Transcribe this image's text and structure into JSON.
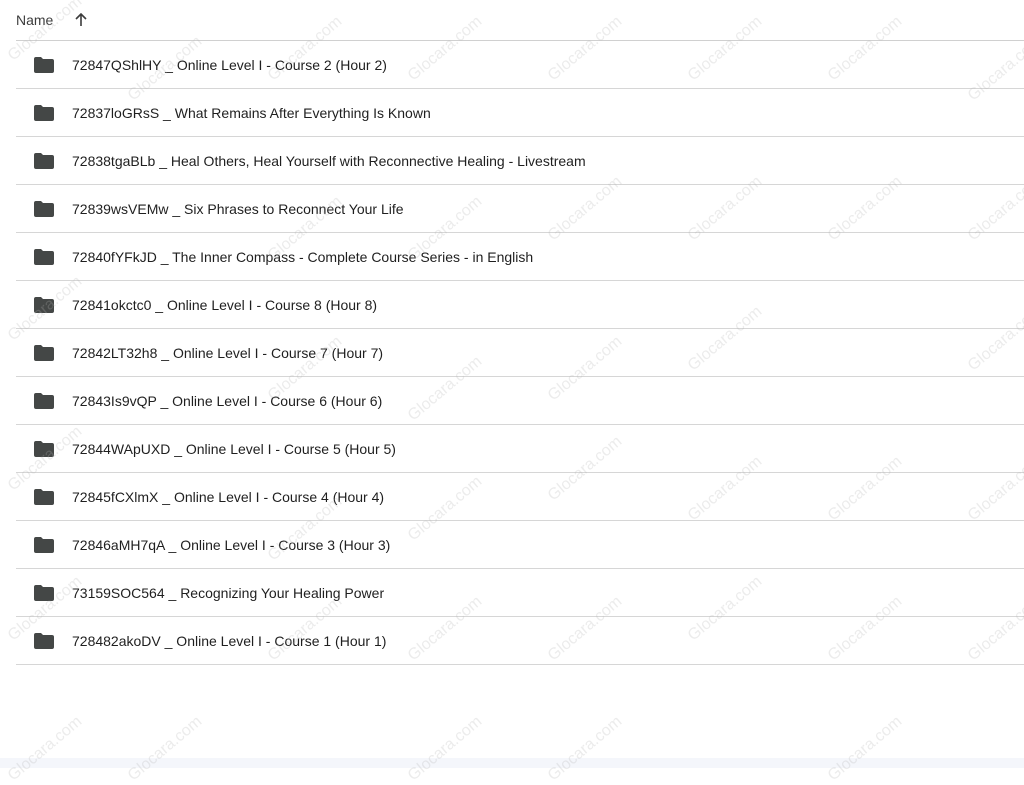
{
  "header": {
    "name_label": "Name",
    "sort_icon": "arrow-up-icon"
  },
  "folder_icon": "folder-icon",
  "items": [
    {
      "name": "72847QShlHY _ Online Level I - Course 2 (Hour 2)"
    },
    {
      "name": "72837loGRsS _ What Remains After Everything Is Known"
    },
    {
      "name": "72838tgaBLb _ Heal Others, Heal Yourself with Reconnective Healing - Livestream"
    },
    {
      "name": "72839wsVEMw _ Six Phrases to Reconnect Your Life"
    },
    {
      "name": "72840fYFkJD _ The Inner Compass - Complete Course Series - in English"
    },
    {
      "name": "72841okctc0 _ Online Level I - Course 8 (Hour 8)"
    },
    {
      "name": "72842LT32h8 _ Online Level I - Course 7 (Hour 7)"
    },
    {
      "name": "72843Is9vQP _ Online Level I - Course 6 (Hour 6)"
    },
    {
      "name": "72844WApUXD _ Online Level I - Course 5 (Hour 5)"
    },
    {
      "name": "72845fCXlmX _ Online Level I - Course 4 (Hour 4)"
    },
    {
      "name": "72846aMH7qA _ Online Level I - Course 3 (Hour 3)"
    },
    {
      "name": "73159SOC564 _ Recognizing Your Healing Power"
    },
    {
      "name": "728482akoDV _ Online Level I - Course 1 (Hour 1)"
    }
  ],
  "watermark": "Glocara.com"
}
